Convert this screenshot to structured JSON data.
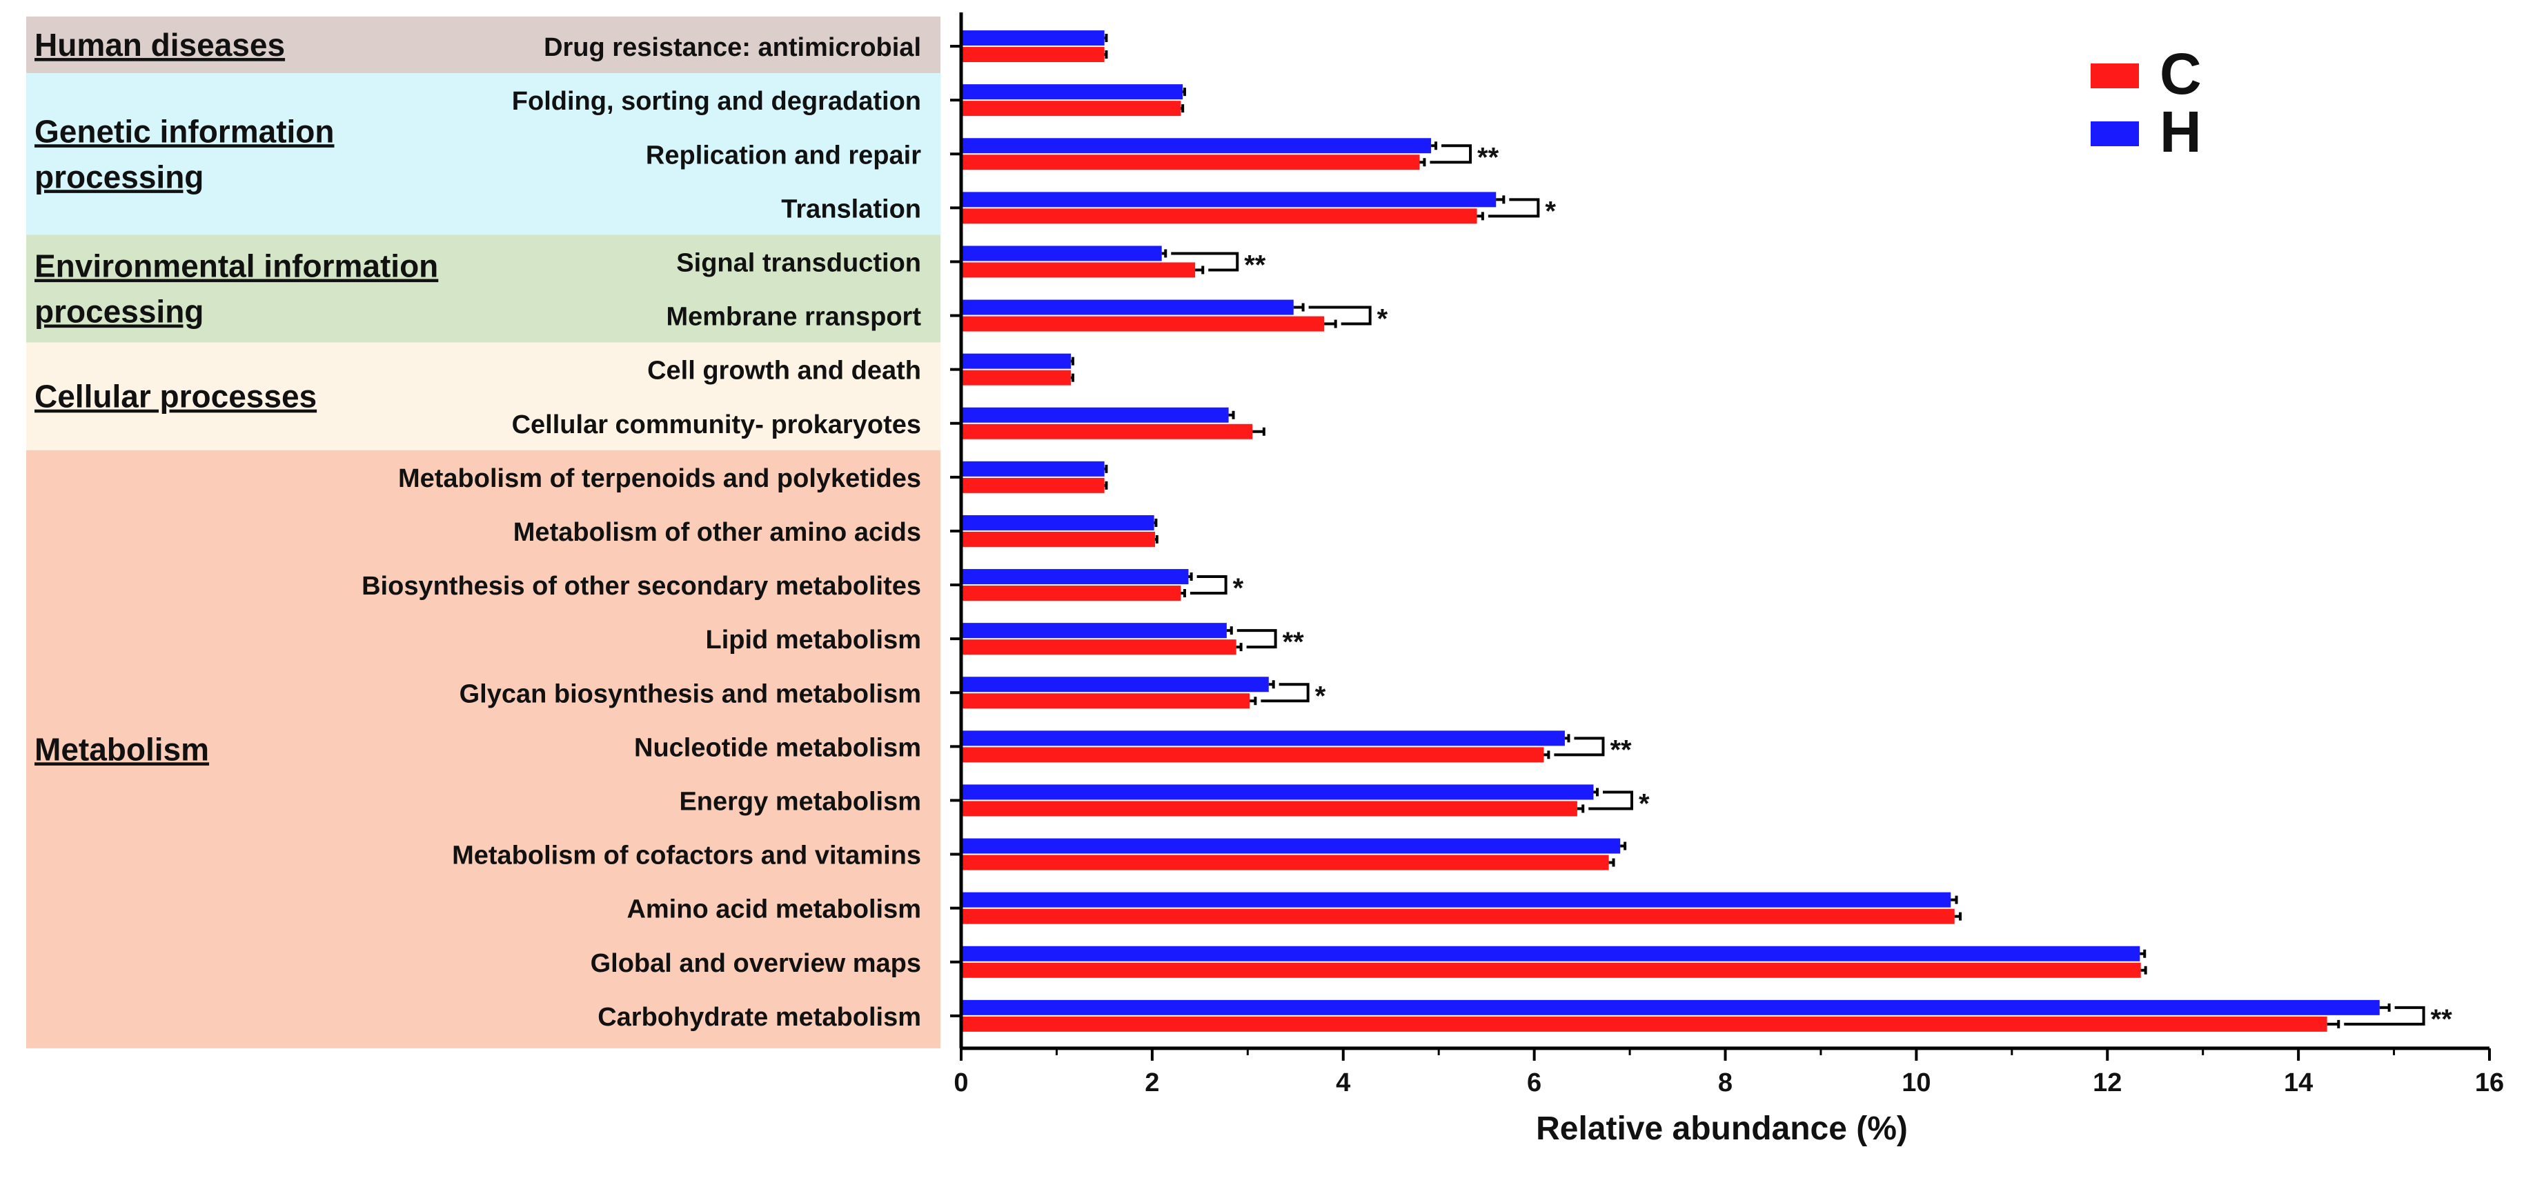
{
  "chart_data": {
    "type": "bar",
    "orientation": "horizontal",
    "xlabel": "Relative abundance (%)",
    "xlim": [
      0,
      16
    ],
    "xticks": [
      0,
      2,
      4,
      6,
      8,
      10,
      12,
      14,
      16
    ],
    "legend": {
      "position": "top-right",
      "entries": [
        {
          "name": "C",
          "color": "#ff1a1a"
        },
        {
          "name": "H",
          "color": "#1a1aff"
        }
      ]
    },
    "groups": [
      {
        "label": "Human diseases",
        "bg": "#dccfcb",
        "categories": [
          "Drug resistance: antimicrobial"
        ]
      },
      {
        "label": "Genetic information\n processing",
        "bg": "#d6f6fb",
        "categories": [
          "Folding, sorting and degradation",
          "Replication and repair ",
          "Translation "
        ]
      },
      {
        "label": "Environmental information \nprocessing",
        "bg": "#d5e6c8",
        "categories": [
          "Signal transduction ",
          "Membrane rransport "
        ]
      },
      {
        "label": "Cellular processes",
        "bg": "#fdf4e6",
        "categories": [
          "Cell growth and death ",
          "Cellular community- prokaryotes "
        ]
      },
      {
        "label": "Metabolism",
        "bg": "#fbcdb8",
        "categories": [
          "Metabolism of terpenoids and polyketides ",
          "Metabolism of other amino acids ",
          "Biosynthesis of other secondary metabolites ",
          "Lipid metabolism ",
          "Glycan biosynthesis and metabolism ",
          "Nucleotide metabolism ",
          "Energy metabolism ",
          "Metabolism of cofactors and vitamins ",
          "Amino acid metabolism ",
          "Global and overview maps ",
          "Carbohydrate metabolism "
        ]
      }
    ],
    "categories": [
      "Drug resistance: antimicrobial",
      "Folding, sorting and degradation",
      "Replication and repair ",
      "Translation ",
      "Signal transduction ",
      "Membrane rransport ",
      "Cell growth and death ",
      "Cellular community- prokaryotes ",
      "Metabolism of terpenoids and polyketides ",
      "Metabolism of other amino acids ",
      "Biosynthesis of other secondary metabolites ",
      "Lipid metabolism ",
      "Glycan biosynthesis and metabolism ",
      "Nucleotide metabolism ",
      "Energy metabolism ",
      "Metabolism of cofactors and vitamins ",
      "Amino acid metabolism ",
      "Global and overview maps ",
      "Carbohydrate metabolism "
    ],
    "series": [
      {
        "name": "H",
        "color": "#1a1aff",
        "values": [
          1.5,
          2.32,
          4.92,
          5.6,
          2.1,
          3.48,
          1.15,
          2.8,
          1.5,
          2.02,
          2.38,
          2.78,
          3.22,
          6.32,
          6.62,
          6.9,
          10.36,
          12.34,
          14.85
        ],
        "errors": [
          0.02,
          0.02,
          0.05,
          0.08,
          0.04,
          0.1,
          0.02,
          0.05,
          0.02,
          0.02,
          0.03,
          0.05,
          0.05,
          0.04,
          0.04,
          0.05,
          0.06,
          0.05,
          0.1
        ]
      },
      {
        "name": "C",
        "color": "#ff1a1a",
        "values": [
          1.5,
          2.3,
          4.8,
          5.4,
          2.45,
          3.8,
          1.15,
          3.05,
          1.5,
          2.03,
          2.3,
          2.88,
          3.02,
          6.1,
          6.45,
          6.78,
          10.4,
          12.35,
          14.3
        ],
        "errors": [
          0.02,
          0.02,
          0.05,
          0.06,
          0.08,
          0.12,
          0.02,
          0.12,
          0.02,
          0.02,
          0.04,
          0.05,
          0.06,
          0.05,
          0.06,
          0.05,
          0.06,
          0.05,
          0.12
        ]
      }
    ],
    "significance": [
      {
        "category": "Replication and repair ",
        "label": "**"
      },
      {
        "category": "Translation ",
        "label": "*"
      },
      {
        "category": "Signal transduction ",
        "label": "**"
      },
      {
        "category": "Membrane rransport ",
        "label": "*"
      },
      {
        "category": "Biosynthesis of other secondary metabolites ",
        "label": "*"
      },
      {
        "category": "Lipid metabolism ",
        "label": "**"
      },
      {
        "category": "Glycan biosynthesis and metabolism ",
        "label": "*"
      },
      {
        "category": "Nucleotide metabolism ",
        "label": "**"
      },
      {
        "category": "Energy metabolism ",
        "label": "*"
      },
      {
        "category": "Carbohydrate metabolism ",
        "label": "**"
      }
    ]
  }
}
